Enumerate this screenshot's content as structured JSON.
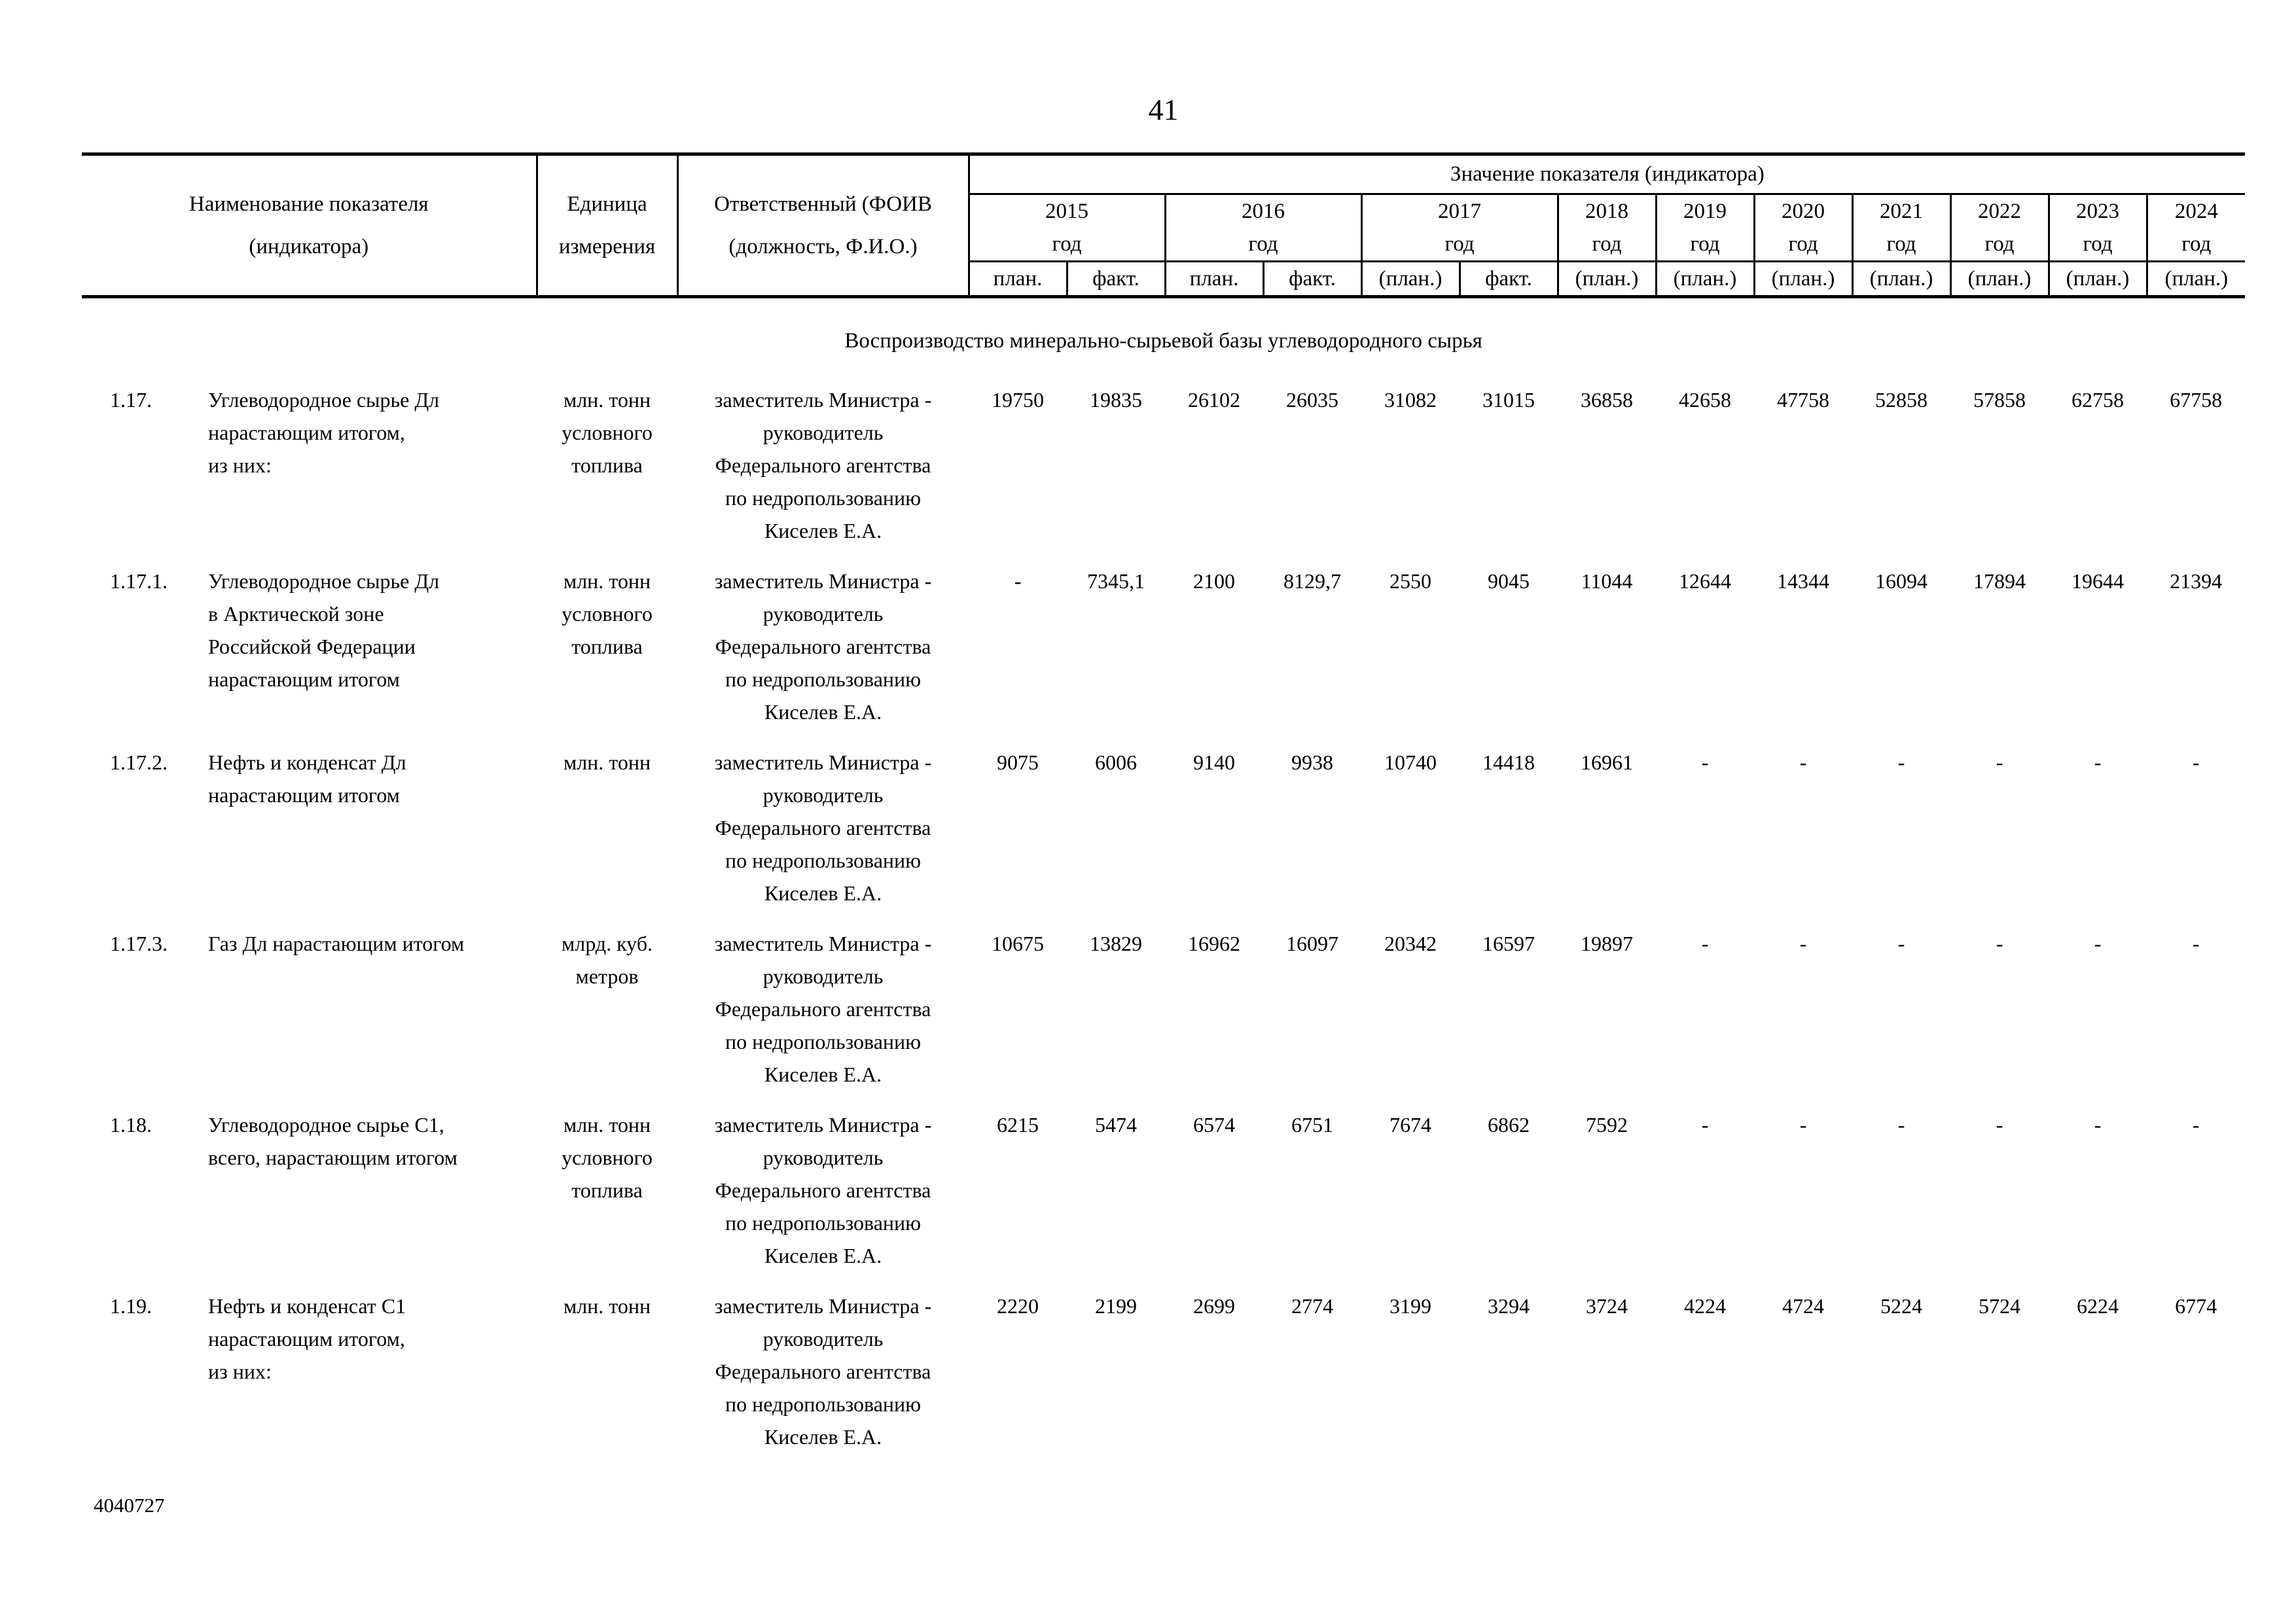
{
  "page": {
    "number": "41",
    "footer_code": "4040727"
  },
  "table": {
    "header": {
      "name_col_lines": [
        "Наименование показателя",
        "(индикатора)"
      ],
      "unit_col_lines": [
        "Единица",
        "измерения"
      ],
      "responsible_col_lines": [
        "Ответственный (ФОИВ",
        "(должность, Ф.И.О.)"
      ],
      "values_group_label": "Значение показателя (индикатора)",
      "year_suffix": "год",
      "years": [
        "2015",
        "2016",
        "2017",
        "2018",
        "2019",
        "2020",
        "2021",
        "2022",
        "2023",
        "2024"
      ],
      "subcols": [
        "план.",
        "факт.",
        "план.",
        "факт.",
        "(план.)",
        "факт.",
        "(план.)",
        "(план.)",
        "(план.)",
        "(план.)",
        "(план.)",
        "(план.)",
        "(план.)"
      ]
    },
    "section_title": "Воспроизводство минерально-сырьевой базы углеводородного сырья",
    "rows": [
      {
        "num": "1.17.",
        "name_lines": [
          "Углеводородное сырье Дл",
          "нарастающим итогом,",
          "из них:"
        ],
        "unit_lines": [
          "млн. тонн",
          "условного",
          "топлива"
        ],
        "responsible_lines": [
          "заместитель Министра -",
          "руководитель",
          "Федерального агентства",
          "по недропользованию",
          "Киселев Е.А."
        ],
        "values": [
          "19750",
          "19835",
          "26102",
          "26035",
          "31082",
          "31015",
          "36858",
          "42658",
          "47758",
          "52858",
          "57858",
          "62758",
          "67758"
        ]
      },
      {
        "num": "1.17.1.",
        "name_lines": [
          "Углеводородное сырье Дл",
          "в Арктической зоне",
          "Российской Федерации",
          "нарастающим итогом"
        ],
        "unit_lines": [
          "млн. тонн",
          "условного",
          "топлива"
        ],
        "responsible_lines": [
          "заместитель Министра -",
          "руководитель",
          "Федерального агентства",
          "по недропользованию",
          "Киселев Е.А."
        ],
        "values": [
          "-",
          "7345,1",
          "2100",
          "8129,7",
          "2550",
          "9045",
          "11044",
          "12644",
          "14344",
          "16094",
          "17894",
          "19644",
          "21394"
        ]
      },
      {
        "num": "1.17.2.",
        "name_lines": [
          "Нефть и конденсат Дл",
          "нарастающим итогом"
        ],
        "unit_lines": [
          "млн. тонн"
        ],
        "responsible_lines": [
          "заместитель Министра -",
          "руководитель",
          "Федерального агентства",
          "по недропользованию",
          "Киселев Е.А."
        ],
        "values": [
          "9075",
          "6006",
          "9140",
          "9938",
          "10740",
          "14418",
          "16961",
          "-",
          "-",
          "-",
          "-",
          "-",
          "-"
        ]
      },
      {
        "num": "1.17.3.",
        "name_lines": [
          "Газ Дл нарастающим итогом"
        ],
        "unit_lines": [
          "млрд. куб.",
          "метров"
        ],
        "responsible_lines": [
          "заместитель Министра -",
          "руководитель",
          "Федерального агентства",
          "по недропользованию",
          "Киселев Е.А."
        ],
        "values": [
          "10675",
          "13829",
          "16962",
          "16097",
          "20342",
          "16597",
          "19897",
          "-",
          "-",
          "-",
          "-",
          "-",
          "-"
        ]
      },
      {
        "num": "1.18.",
        "name_lines": [
          "Углеводородное сырье С1,",
          "всего, нарастающим итогом"
        ],
        "unit_lines": [
          "млн. тонн",
          "условного",
          "топлива"
        ],
        "responsible_lines": [
          "заместитель Министра -",
          "руководитель",
          "Федерального агентства",
          "по недропользованию",
          "Киселев Е.А."
        ],
        "values": [
          "6215",
          "5474",
          "6574",
          "6751",
          "7674",
          "6862",
          "7592",
          "-",
          "-",
          "-",
          "-",
          "-",
          "-"
        ]
      },
      {
        "num": "1.19.",
        "name_lines": [
          "Нефть и конденсат С1",
          "нарастающим итогом,",
          "из них:"
        ],
        "unit_lines": [
          "млн. тонн"
        ],
        "responsible_lines": [
          "заместитель Министра -",
          "руководитель",
          "Федерального агентства",
          "по недропользованию",
          "Киселев Е.А."
        ],
        "values": [
          "2220",
          "2199",
          "2699",
          "2774",
          "3199",
          "3294",
          "3724",
          "4224",
          "4724",
          "5224",
          "5724",
          "6224",
          "6774"
        ]
      }
    ]
  }
}
